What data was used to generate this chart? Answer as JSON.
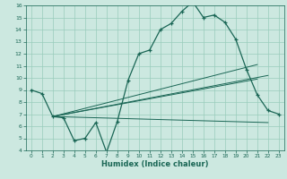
{
  "xlabel": "Humidex (Indice chaleur)",
  "bg_color": "#cce8e0",
  "grid_color": "#99ccbb",
  "line_color": "#1a6655",
  "xlim": [
    -0.5,
    23.5
  ],
  "ylim": [
    4,
    16
  ],
  "xticks": [
    0,
    1,
    2,
    3,
    4,
    5,
    6,
    7,
    8,
    9,
    10,
    11,
    12,
    13,
    14,
    15,
    16,
    17,
    18,
    19,
    20,
    21,
    22,
    23
  ],
  "yticks": [
    4,
    5,
    6,
    7,
    8,
    9,
    10,
    11,
    12,
    13,
    14,
    15,
    16
  ],
  "main_curve_x": [
    0,
    1,
    2,
    3,
    4,
    5,
    6,
    7,
    8,
    9,
    10,
    11,
    12,
    13,
    14,
    15,
    16,
    17,
    18,
    19,
    20,
    21,
    22,
    23
  ],
  "main_curve_y": [
    9.0,
    8.7,
    6.8,
    6.7,
    4.8,
    5.0,
    6.3,
    3.85,
    6.4,
    9.8,
    12.0,
    12.3,
    14.0,
    14.5,
    15.5,
    16.3,
    15.0,
    15.2,
    14.6,
    13.2,
    10.7,
    8.6,
    7.3,
    7.0
  ],
  "trend_lines": [
    {
      "x": [
        2,
        22
      ],
      "y": [
        6.8,
        6.3
      ]
    },
    {
      "x": [
        2,
        22
      ],
      "y": [
        6.8,
        10.2
      ]
    },
    {
      "x": [
        2,
        21
      ],
      "y": [
        6.8,
        11.1
      ]
    },
    {
      "x": [
        2,
        21
      ],
      "y": [
        6.8,
        9.9
      ]
    }
  ]
}
